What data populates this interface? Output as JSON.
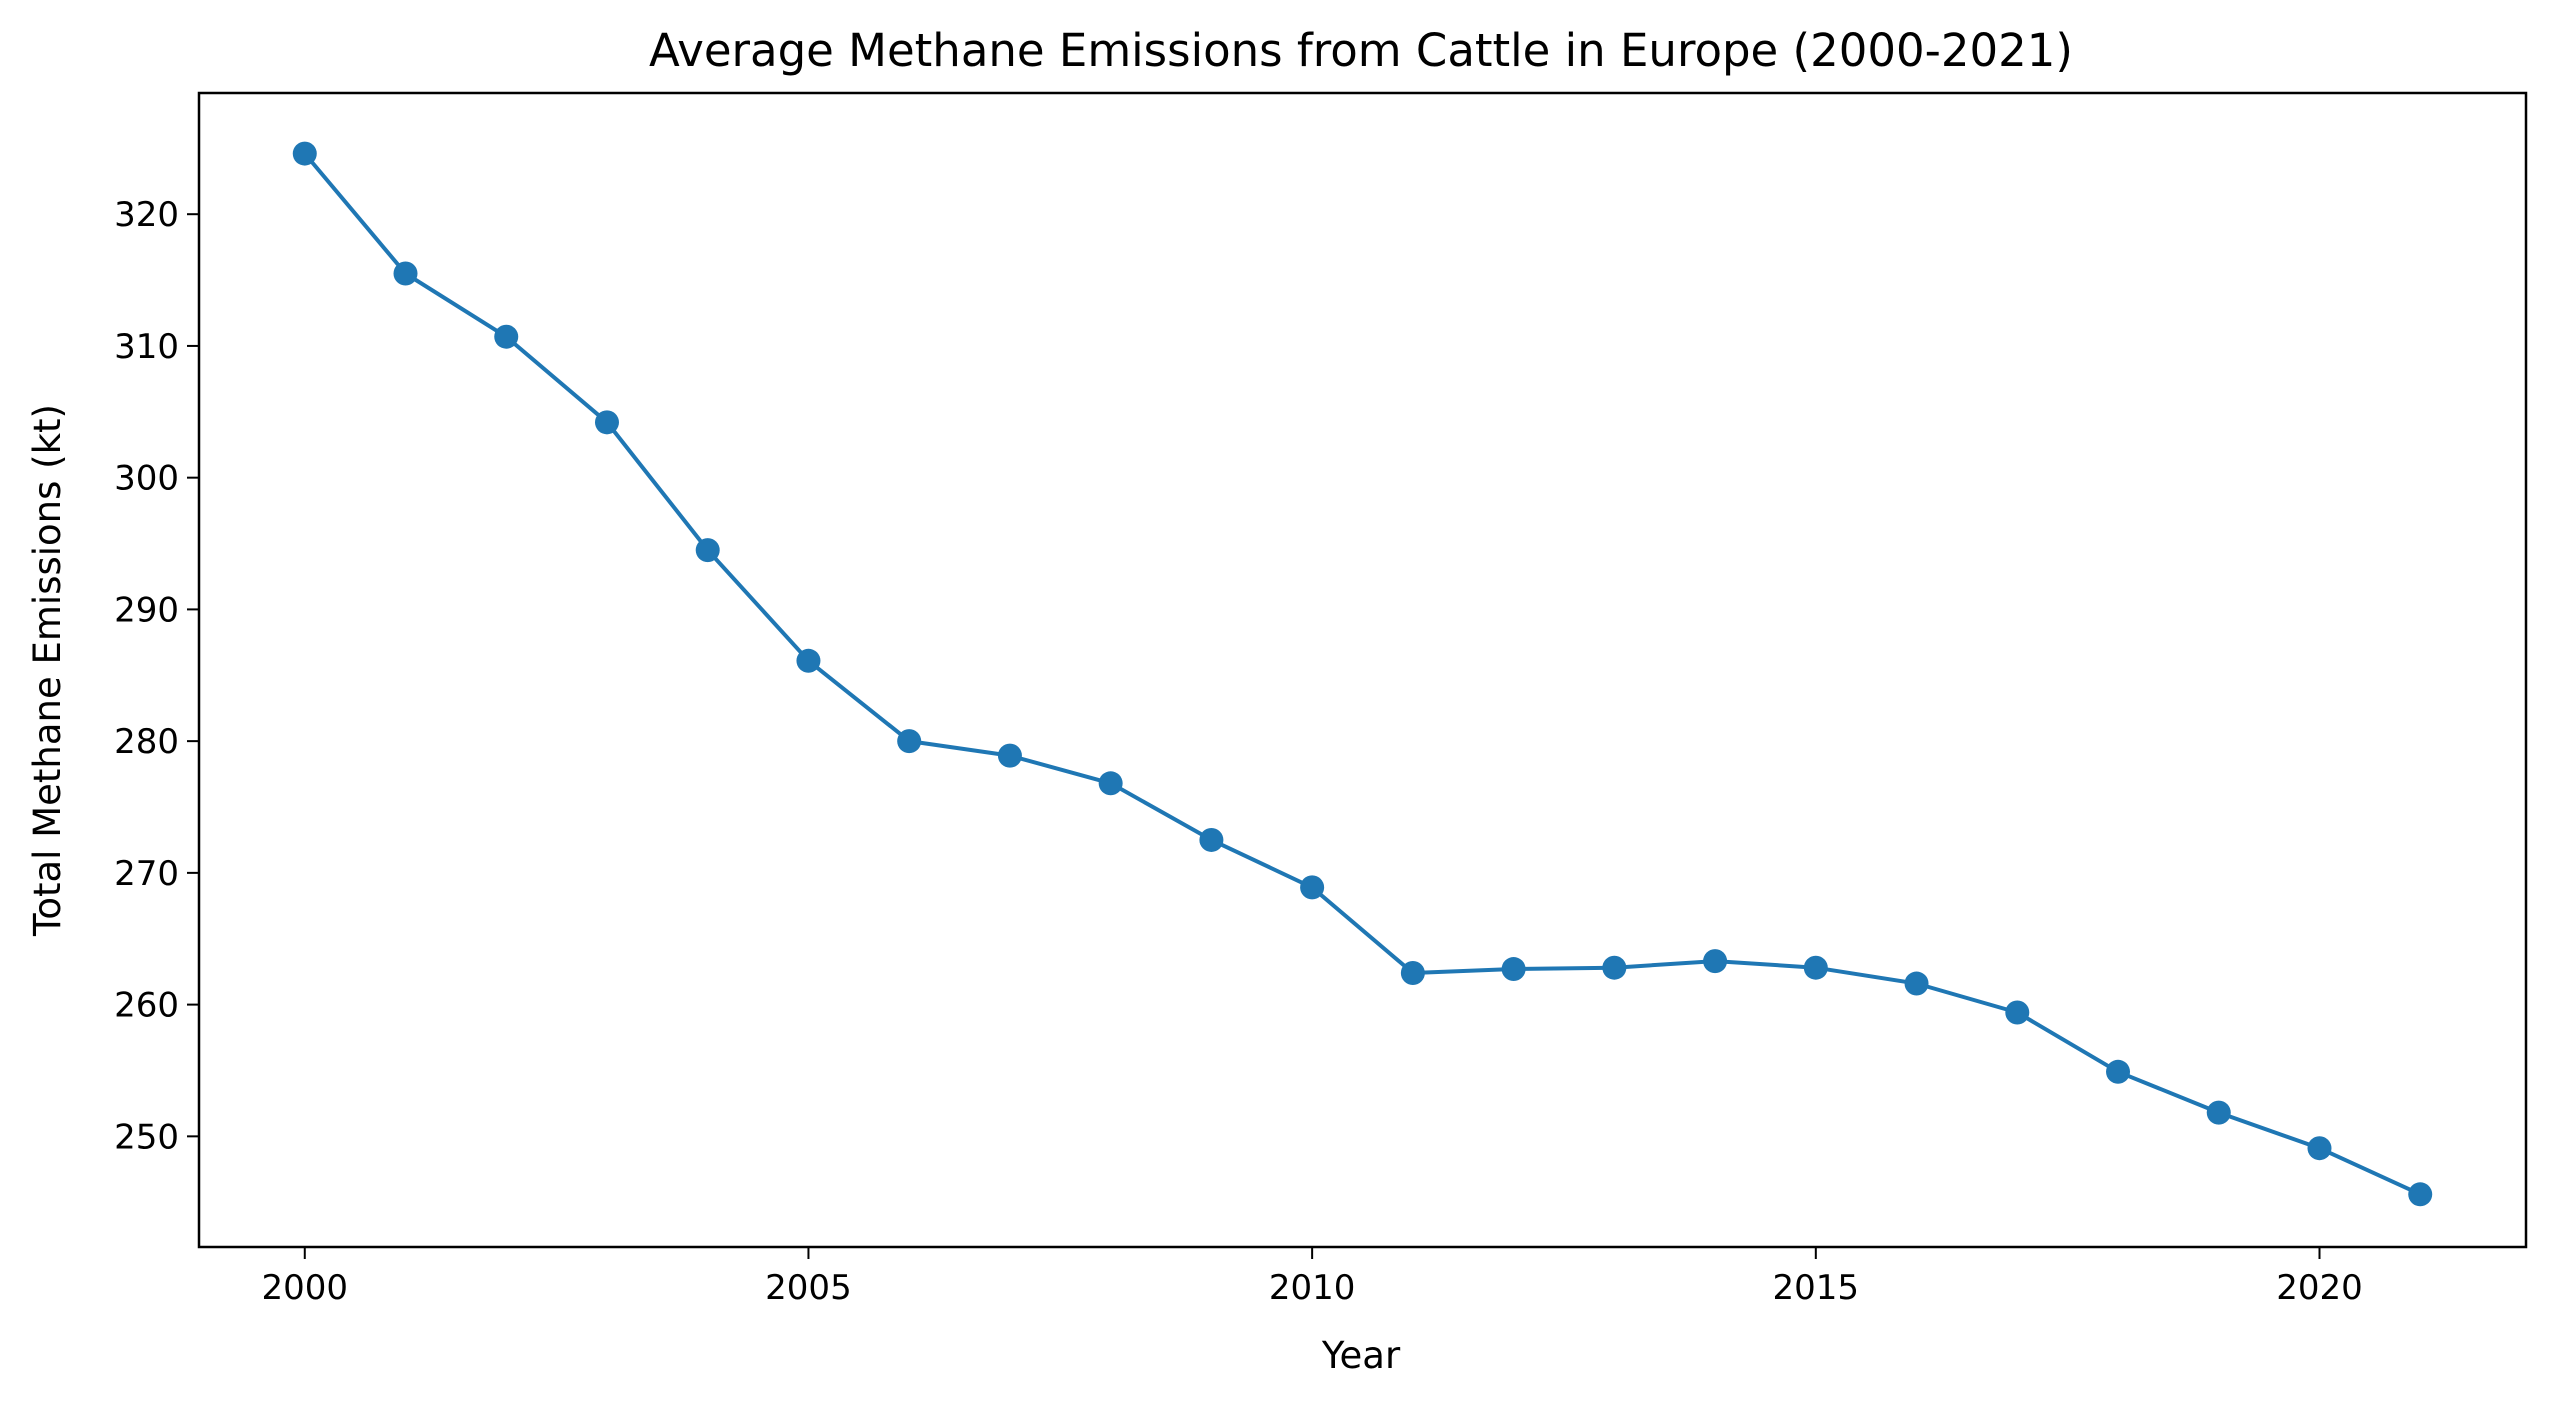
{
  "chart_data": {
    "type": "line",
    "title": "Average Methane Emissions from Cattle in Europe (2000-2021)",
    "xlabel": "Year",
    "ylabel": "Total Methane Emissions (kt)",
    "x": [
      2000,
      2001,
      2002,
      2003,
      2004,
      2005,
      2006,
      2007,
      2008,
      2009,
      2010,
      2011,
      2012,
      2013,
      2014,
      2015,
      2016,
      2017,
      2018,
      2019,
      2020,
      2021
    ],
    "series": [
      {
        "values": [
          324.6,
          315.5,
          310.7,
          304.2,
          294.5,
          286.1,
          280.0,
          278.9,
          276.8,
          272.5,
          268.9,
          262.4,
          262.7,
          262.8,
          263.3,
          262.8,
          261.6,
          259.4,
          254.9,
          251.8,
          249.1,
          245.6
        ],
        "color": "#1f77b4",
        "marker": "circle"
      }
    ],
    "xlim": [
      1998.95,
      2022.05
    ],
    "ylim": [
      241.6,
      329.2
    ],
    "xticks": [
      2000,
      2005,
      2010,
      2015,
      2020
    ],
    "yticks": [
      250,
      260,
      270,
      280,
      290,
      300,
      310,
      320
    ],
    "grid": false,
    "legend": "none"
  }
}
